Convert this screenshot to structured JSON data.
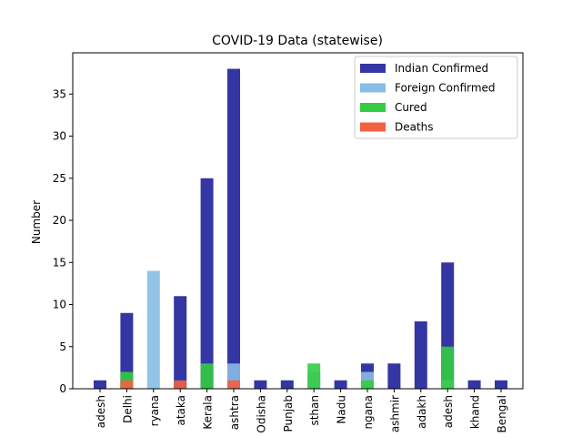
{
  "chart_data": {
    "type": "bar",
    "stacked": false,
    "title": "COVID-19 Data (statewise)",
    "xlabel": "",
    "ylabel": "Number",
    "ylim": [
      0,
      39.9
    ],
    "yticks": [
      0,
      5,
      10,
      15,
      20,
      25,
      30,
      35
    ],
    "grid": false,
    "legend_position": "top-right",
    "categories": [
      "Andhra Pradesh",
      "Delhi",
      "Haryana",
      "Karnataka",
      "Kerala",
      "Maharashtra",
      "Odisha",
      "Punjab",
      "Rajasthan",
      "Tamil Nadu",
      "Telangana",
      "Jammu and Kashmir",
      "Ladakh",
      "Uttar Pradesh",
      "Uttarakhand",
      "West Bengal"
    ],
    "category_tick_labels": [
      "adesh",
      "Delhi",
      "ryana",
      "ataka",
      "Kerala",
      "ashtra",
      "Odisha",
      "Punjab",
      "sthan",
      "Nadu",
      "ngana",
      "ashmir",
      "adakh",
      "adesh",
      "khand",
      "Bengal"
    ],
    "series": [
      {
        "name": "Indian Confirmed",
        "color": "#3336a3",
        "values": [
          1,
          9,
          0,
          11,
          25,
          38,
          1,
          1,
          0,
          1,
          3,
          3,
          8,
          15,
          1,
          1
        ]
      },
      {
        "name": "Foreign Confirmed",
        "color": "#88bde6",
        "values": [
          0,
          1,
          14,
          0,
          0,
          3,
          0,
          0,
          2,
          0,
          2,
          0,
          0,
          1,
          0,
          0
        ]
      },
      {
        "name": "Cured",
        "color": "#33cc44",
        "values": [
          0,
          2,
          0,
          0,
          3,
          0,
          0,
          0,
          3,
          0,
          1,
          0,
          0,
          5,
          0,
          0
        ]
      },
      {
        "name": "Deaths",
        "color": "#f26140",
        "values": [
          0,
          1,
          0,
          1,
          0,
          1,
          0,
          0,
          0,
          0,
          0,
          0,
          0,
          0,
          0,
          0
        ]
      }
    ]
  }
}
